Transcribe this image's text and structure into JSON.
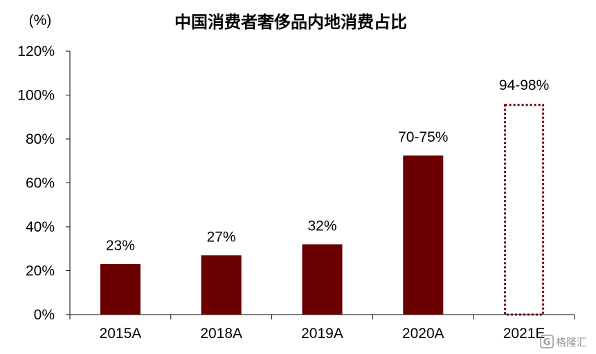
{
  "chart_data": {
    "type": "bar",
    "title": "中国消费者奢侈品内地消费占比",
    "ylabel": "(%)",
    "xlabel": "",
    "categories": [
      "2015A",
      "2018A",
      "2019A",
      "2020A",
      "2021E"
    ],
    "values": [
      23,
      27,
      32,
      72.5,
      96
    ],
    "data_labels": [
      "23%",
      "27%",
      "32%",
      "70-75%",
      "94-98%"
    ],
    "estimated": [
      false,
      false,
      false,
      false,
      true
    ],
    "ylim": [
      0,
      120
    ],
    "yticks": [
      0,
      20,
      40,
      60,
      80,
      100,
      120
    ],
    "ytick_labels": [
      "0%",
      "20%",
      "40%",
      "60%",
      "80%",
      "100%",
      "120%"
    ],
    "grid": false,
    "bar_color": "#6b0000",
    "estimate_outline_color": "#6b0000"
  },
  "watermark": {
    "text": "格隆汇",
    "logo_letter": "G"
  }
}
